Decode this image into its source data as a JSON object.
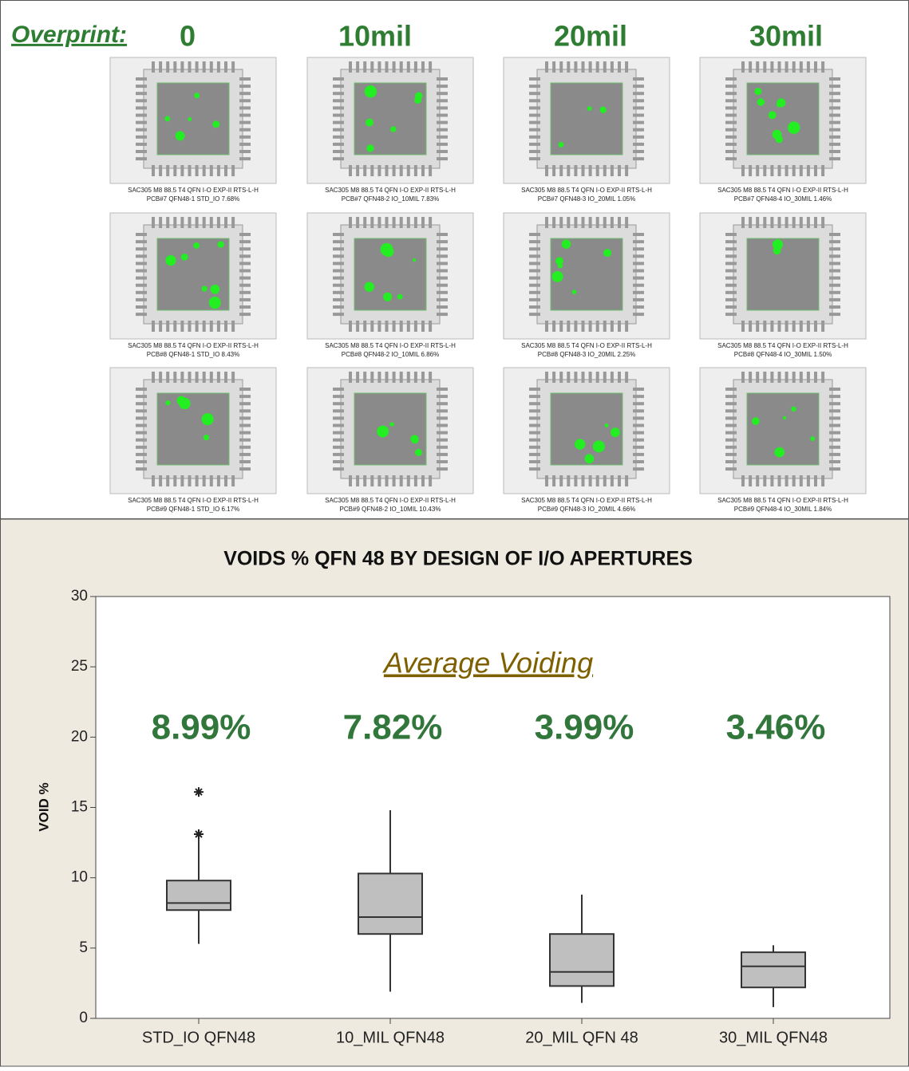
{
  "header": {
    "label": "Overprint:",
    "columns": [
      "0",
      "10mil",
      "20mil",
      "30mil"
    ]
  },
  "images": {
    "rows": [
      [
        {
          "line1": "SAC305 M8 88.5 T4 QFN I-O EXP-II RTS-L-H",
          "line2": "PCB#7 QFN48-1 STD_IO 7.68%"
        },
        {
          "line1": "SAC305 M8 88.5 T4 QFN I-O EXP-II RTS-L-H",
          "line2": "PCB#7 QFN48-2 IO_10MIL 7.83%"
        },
        {
          "line1": "SAC305 M8 88.5 T4 QFN I-O EXP-II RTS-L-H",
          "line2": "PCB#7 QFN48-3 IO_20MIL 1.05%"
        },
        {
          "line1": "SAC305 M8 88.5 T4 QFN I-O EXP-II RTS-L-H",
          "line2": "PCB#7 QFN48-4 IO_30MIL 1.46%"
        }
      ],
      [
        {
          "line1": "SAC305 M8 88.5 T4 QFN I-O EXP-II RTS-L-H",
          "line2": "PCB#8 QFN48-1 STD_IO 8.43%"
        },
        {
          "line1": "SAC305 M8 88.5 T4 QFN I-O EXP-II RTS-L-H",
          "line2": "PCB#8 QFN48-2 IO_10MIL 6.86%"
        },
        {
          "line1": "SAC305 M8 88.5 T4 QFN I-O EXP-II RTS-L-H",
          "line2": "PCB#8 QFN48-3 IO_20MIL 2.25%"
        },
        {
          "line1": "SAC305 M8 88.5 T4 QFN I-O EXP-II RTS-L-H",
          "line2": "PCB#8 QFN48-4 IO_30MIL 1.50%"
        }
      ],
      [
        {
          "line1": "SAC305 M8 88.5 T4 QFN I-O EXP-II RTS-L-H",
          "line2": "PCB#9 QFN48-1 STD_IO 6.17%"
        },
        {
          "line1": "SAC305 M8 88.5 T4 QFN I-O EXP-II RTS-L-H",
          "line2": "PCB#9 QFN48-2 IO_10MIL 10.43%"
        },
        {
          "line1": "SAC305 M8 88.5 T4 QFN I-O EXP-II RTS-L-H",
          "line2": "PCB#9 QFN48-3 IO_20MIL 4.66%"
        },
        {
          "line1": "SAC305 M8 88.5 T4 QFN I-O EXP-II RTS-L-H",
          "line2": "PCB#9 QFN48-4 IO_30MIL 1.84%"
        }
      ]
    ]
  },
  "chart_data": {
    "type": "boxplot",
    "title": "VOIDS % QFN 48  BY DESIGN OF  I/O APERTURES",
    "ylabel": "VOID %",
    "categories": [
      "STD_IO QFN48",
      "10_MIL QFN48",
      "20_MIL QFN 48",
      "30_MIL QFN48"
    ],
    "boxes": [
      {
        "whislo": 5.3,
        "q1": 7.7,
        "med": 8.2,
        "q3": 9.8,
        "whishi": 12.8,
        "fliers": [
          13.1,
          16.1
        ]
      },
      {
        "whislo": 1.9,
        "q1": 6.0,
        "med": 7.2,
        "q3": 10.3,
        "whishi": 14.8,
        "fliers": []
      },
      {
        "whislo": 1.1,
        "q1": 2.3,
        "med": 3.3,
        "q3": 6.0,
        "whishi": 8.8,
        "fliers": []
      },
      {
        "whislo": 0.8,
        "q1": 2.2,
        "med": 3.7,
        "q3": 4.7,
        "whishi": 5.2,
        "fliers": []
      }
    ],
    "color": "#bfbfbf",
    "ylim": [
      0,
      30
    ],
    "yticks": [
      0,
      5,
      10,
      15,
      20,
      25,
      30
    ],
    "annotation": {
      "title": "Average Voiding",
      "values": [
        8.99,
        7.82,
        3.99,
        3.46
      ],
      "value_labels": [
        "8.99%",
        "7.82%",
        "3.99%",
        "3.46%"
      ]
    }
  }
}
